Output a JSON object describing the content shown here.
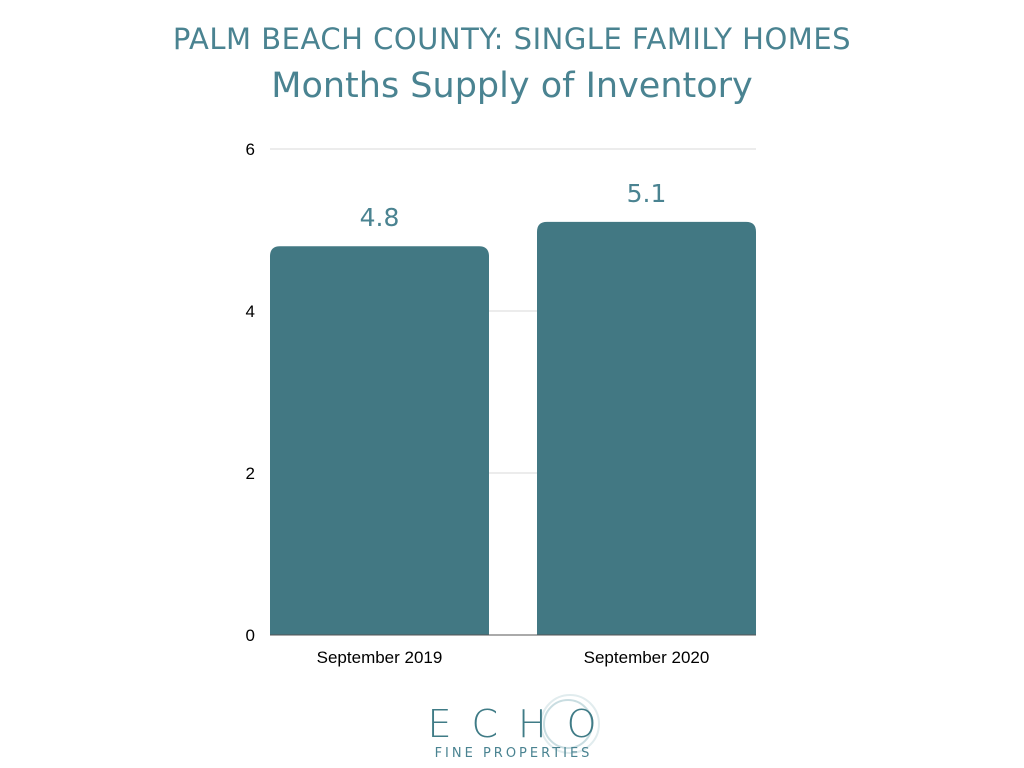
{
  "header": {
    "title": "PALM BEACH COUNTY: SINGLE FAMILY HOMES",
    "subtitle": "Months Supply of Inventory"
  },
  "chart_data": {
    "type": "bar",
    "categories": [
      "September 2019",
      "September 2020"
    ],
    "values": [
      4.8,
      5.1
    ],
    "data_labels": [
      "4.8",
      "5.1"
    ],
    "title": "PALM BEACH COUNTY: SINGLE FAMILY HOMES",
    "subtitle": "Months Supply of Inventory",
    "xlabel": "",
    "ylabel": "",
    "ylim": [
      0,
      6
    ],
    "yticks": [
      0,
      2,
      4,
      6
    ],
    "grid": true,
    "colors": {
      "bar": "#427883",
      "data_label": "#4a8391",
      "grid": "#d9d9d9",
      "axis_text": "#000000"
    }
  },
  "logo": {
    "word": "ECHO",
    "tagline": "FINE PROPERTIES"
  }
}
